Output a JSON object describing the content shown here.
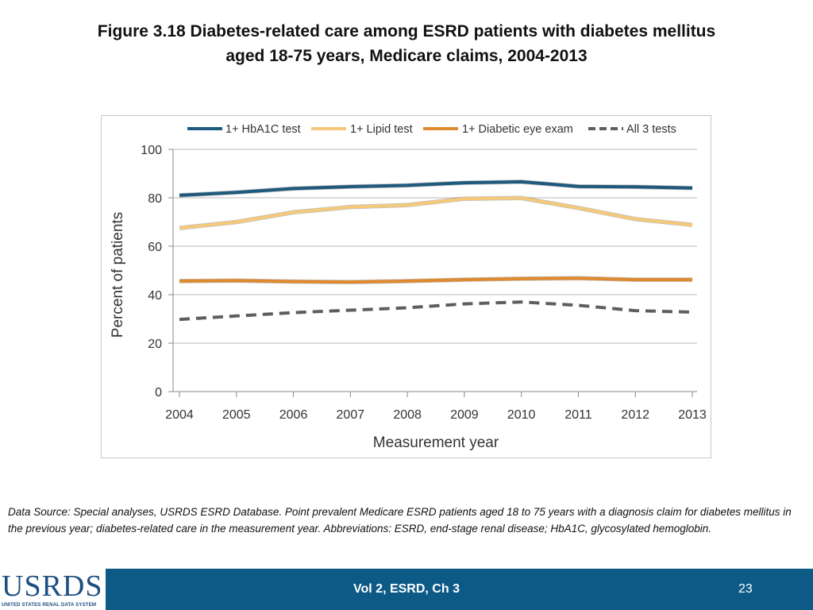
{
  "title": {
    "line1": "Figure 3.18 Diabetes-related care among ESRD patients with diabetes mellitus",
    "line2": "aged 18-75 years, Medicare claims, 2004-2013"
  },
  "chart_data": {
    "type": "line",
    "title": "Figure 3.18 Diabetes-related care among ESRD patients with diabetes mellitus aged 18-75 years, Medicare claims, 2004-2013",
    "xlabel": "Measurement year",
    "ylabel": "Percent of patients",
    "categories": [
      "2004",
      "2005",
      "2006",
      "2007",
      "2008",
      "2009",
      "2010",
      "2011",
      "2012",
      "2013"
    ],
    "ylim": [
      0,
      100
    ],
    "yticks": [
      "0",
      "20",
      "40",
      "60",
      "80",
      "100"
    ],
    "grid": true,
    "legend_position": "top",
    "series": [
      {
        "name": "1+ HbA1C test",
        "color": "#1f5a7e",
        "style": "solid",
        "values": [
          81.0,
          82.2,
          83.8,
          84.6,
          85.1,
          86.2,
          86.6,
          84.7,
          84.5,
          84.0
        ]
      },
      {
        "name": "1+ Lipid test",
        "color": "#f5c97a",
        "style": "solid",
        "values": [
          67.5,
          70.0,
          74.0,
          76.2,
          77.0,
          79.6,
          79.9,
          75.8,
          71.2,
          68.8
        ]
      },
      {
        "name": "1+ Diabetic eye exam",
        "color": "#e08a2f",
        "style": "solid",
        "values": [
          45.6,
          45.8,
          45.4,
          45.2,
          45.6,
          46.2,
          46.6,
          46.8,
          46.2,
          46.2
        ]
      },
      {
        "name": "All 3 tests",
        "color": "#5e5e5e",
        "style": "dashed",
        "values": [
          29.8,
          31.2,
          32.6,
          33.6,
          34.6,
          36.2,
          37.0,
          35.6,
          33.4,
          32.8
        ]
      }
    ]
  },
  "source_note": "Data Source: Special analyses, USRDS ESRD Database. Point prevalent Medicare ESRD patients aged 18 to 75 years with a diagnosis claim for diabetes mellitus in the previous year; diabetes-related care in the measurement year. Abbreviations: ESRD, end-stage renal disease; HbA1C, glycosylated hemoglobin.",
  "footer": {
    "logo_text": "USRDS",
    "logo_subtext": "UNITED STATES RENAL DATA SYSTEM",
    "center_label": "Vol 2, ESRD, Ch 3",
    "page_number": "23",
    "background_color": "#0e5a86"
  }
}
